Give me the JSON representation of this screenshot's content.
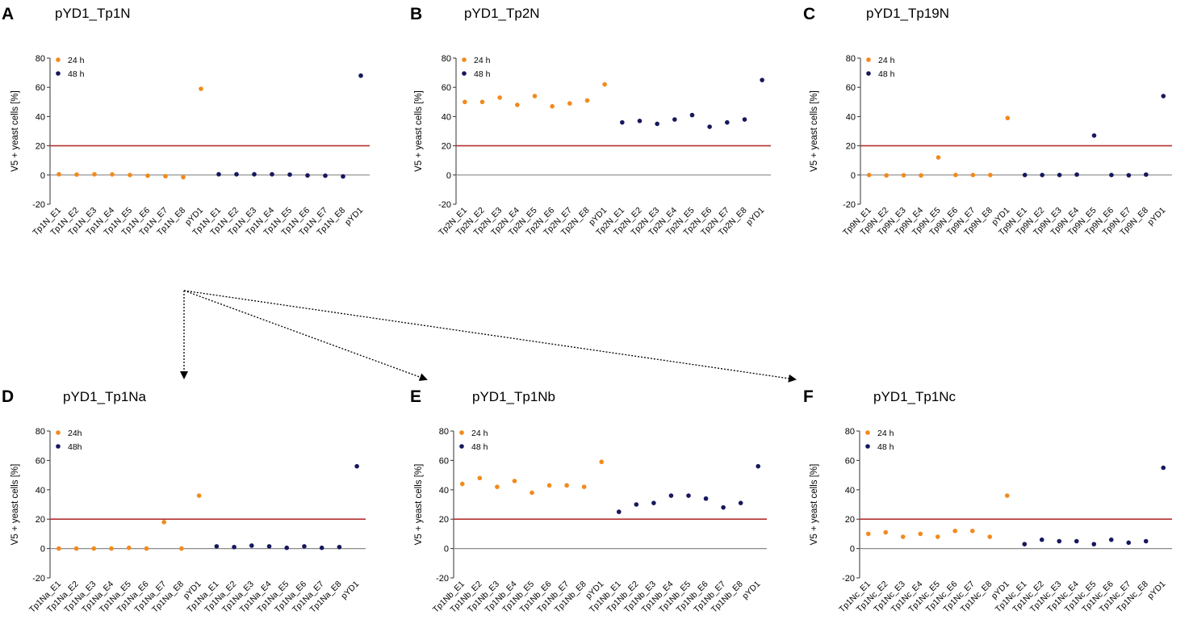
{
  "figure": {
    "colors": {
      "h24": "#f28a1c",
      "h48": "#17185e",
      "threshold": "#b53230",
      "zero": "#8a8a8a",
      "axis": "#333333"
    }
  },
  "chart_data": [
    {
      "type": "scatter",
      "panel": "A",
      "title": "pYD1_Tp1N",
      "xlabel": "",
      "ylabel": "V5 + yeast cells [%]",
      "ylim": [
        -20,
        80
      ],
      "yticks": [
        -20,
        0,
        20,
        40,
        60,
        80
      ],
      "legend": [
        "24 h",
        "48 h"
      ],
      "legend_position": "top-left",
      "threshold": 20,
      "categories": [
        "Tp1N_E1",
        "Tp1N_E2",
        "Tp1N_E3",
        "Tp1N_E4",
        "Tp1N_E5",
        "Tp1N_E6",
        "Tp1N_E7",
        "Tp1N_E8",
        "pYD1",
        "Tp1N_E1",
        "Tp1N_E2",
        "Tp1N_E3",
        "Tp1N_E4",
        "Tp1N_E5",
        "Tp1N_E6",
        "Tp1N_E7",
        "Tp1N_E8",
        "pYD1"
      ],
      "series": [
        {
          "name": "24 h",
          "x": [
            0,
            1,
            2,
            3,
            4,
            5,
            6,
            7,
            8
          ],
          "values": [
            0.5,
            0.3,
            0.5,
            0.4,
            0,
            -0.5,
            -0.8,
            -1.5,
            59
          ]
        },
        {
          "name": "48 h",
          "x": [
            9,
            10,
            11,
            12,
            13,
            14,
            15,
            16,
            17
          ],
          "values": [
            0.5,
            0.5,
            0.5,
            0.5,
            0.3,
            -0.3,
            -0.5,
            -1,
            68
          ]
        }
      ]
    },
    {
      "type": "scatter",
      "panel": "B",
      "title": "pYD1_Tp2N",
      "xlabel": "",
      "ylabel": "V5 + yeast cells [%]",
      "ylim": [
        -20,
        80
      ],
      "yticks": [
        -20,
        0,
        20,
        40,
        60,
        80
      ],
      "legend": [
        "24 h",
        "48 h"
      ],
      "legend_position": "top-left",
      "threshold": 20,
      "categories": [
        "Tp2N_E1",
        "Tp2N_E2",
        "Tp2N_E3",
        "Tp2N_E4",
        "Tp2N_E5",
        "Tp2N_E6",
        "Tp2N_E7",
        "Tp2N_E8",
        "pYD1",
        "Tp2N_E1",
        "Tp2N_E2",
        "Tp2N_E3",
        "Tp2N_E4",
        "Tp2N_E5",
        "Tp2N_E6",
        "Tp2N_E7",
        "Tp2N_E8",
        "pYD1"
      ],
      "series": [
        {
          "name": "24 h",
          "x": [
            0,
            1,
            2,
            3,
            4,
            5,
            6,
            7,
            8
          ],
          "values": [
            50,
            50,
            53,
            48,
            54,
            47,
            49,
            51,
            62
          ]
        },
        {
          "name": "48 h",
          "x": [
            9,
            10,
            11,
            12,
            13,
            14,
            15,
            16,
            17
          ],
          "values": [
            36,
            37,
            35,
            38,
            41,
            33,
            36,
            38,
            65
          ]
        }
      ]
    },
    {
      "type": "scatter",
      "panel": "C",
      "title": "pYD1_Tp19N",
      "xlabel": "",
      "ylabel": "V5 + yeast cells [%]",
      "ylim": [
        -20,
        80
      ],
      "yticks": [
        -20,
        0,
        20,
        40,
        60,
        80
      ],
      "legend": [
        "24 h",
        "48 h"
      ],
      "legend_position": "top-left",
      "threshold": 20,
      "categories": [
        "Tp9N_E1",
        "Tp9N_E2",
        "Tp9N_E3",
        "Tp9N_E4",
        "Tp9N_E5",
        "Tp9N_E6",
        "Tp9N_E7",
        "Tp9N_E8",
        "pYD1",
        "Tp9N_E1",
        "Tp9N_E2",
        "Tp9N_E3",
        "Tp9N_E4",
        "Tp9N_E5",
        "Tp9N_E6",
        "Tp9N_E7",
        "Tp9N_E8",
        "pYD1"
      ],
      "series": [
        {
          "name": "24 h",
          "x": [
            0,
            1,
            2,
            3,
            4,
            5,
            6,
            7,
            8
          ],
          "values": [
            0,
            -0.3,
            -0.2,
            -0.3,
            12,
            0,
            0,
            0,
            39
          ]
        },
        {
          "name": "48 h",
          "x": [
            9,
            10,
            11,
            12,
            13,
            14,
            15,
            16,
            17
          ],
          "values": [
            0,
            0,
            0,
            0.3,
            27,
            0,
            -0.2,
            0.3,
            54
          ]
        }
      ]
    },
    {
      "type": "scatter",
      "panel": "D",
      "title": "pYD1_Tp1Na",
      "xlabel": "",
      "ylabel": "V5 + yeast cells [%]",
      "ylim": [
        -20,
        80
      ],
      "yticks": [
        -20,
        0,
        20,
        40,
        60,
        80
      ],
      "legend": [
        "24h",
        "48h"
      ],
      "legend_position": "top-left",
      "threshold": 20,
      "categories": [
        "Tp1Na_E1",
        "Tp1Na_E2",
        "Tp1Na_E3",
        "Tp1Na_E4",
        "Tp1Na_E5",
        "Tp1Na_E6",
        "Tp1Na_E7",
        "Tp1Na_E8",
        "pYD1",
        "Tp1Na_E1",
        "Tp1Na_E2",
        "Tp1Na_E3",
        "Tp1Na_E4",
        "Tp1Na_E5",
        "Tp1Na_E6",
        "Tp1Na_E7",
        "Tp1Na_E8",
        "pYD1"
      ],
      "series": [
        {
          "name": "24h",
          "x": [
            0,
            1,
            2,
            3,
            4,
            5,
            6,
            7,
            8
          ],
          "values": [
            0,
            0,
            0,
            0,
            0.5,
            0,
            18,
            0,
            36
          ]
        },
        {
          "name": "48h",
          "x": [
            9,
            10,
            11,
            12,
            13,
            14,
            15,
            16,
            17
          ],
          "values": [
            1.5,
            1,
            2,
            1.5,
            0.5,
            1.5,
            0.5,
            1,
            56
          ]
        }
      ]
    },
    {
      "type": "scatter",
      "panel": "E",
      "title": "pYD1_Tp1Nb",
      "xlabel": "",
      "ylabel": "V5 + yeast cells [%]",
      "ylim": [
        -20,
        80
      ],
      "yticks": [
        -20,
        0,
        20,
        40,
        60,
        80
      ],
      "legend": [
        "24 h",
        "48 h"
      ],
      "legend_position": "top-left",
      "threshold": 20,
      "categories": [
        "Tp1Nb_E1",
        "Tp1Nb_E2",
        "Tp1Nb_E3",
        "Tp1Nb_E4",
        "Tp1Nb_E5",
        "Tp1Nb_E6",
        "Tp1Nb_E7",
        "Tp1Nb_E8",
        "pYD1",
        "Tp1Nb_E1",
        "Tp1Nb_E2",
        "Tp1Nb_E3",
        "Tp1Nb_E4",
        "Tp1Nb_E5",
        "Tp1Nb_E6",
        "Tp1Nb_E7",
        "Tp1Nb_E8",
        "pYD1"
      ],
      "series": [
        {
          "name": "24 h",
          "x": [
            0,
            1,
            2,
            3,
            4,
            5,
            6,
            7,
            8
          ],
          "values": [
            44,
            48,
            42,
            46,
            38,
            43,
            43,
            42,
            59
          ]
        },
        {
          "name": "48 h",
          "x": [
            9,
            10,
            11,
            12,
            13,
            14,
            15,
            16,
            17
          ],
          "values": [
            25,
            30,
            31,
            36,
            36,
            34,
            28,
            31,
            56
          ]
        }
      ]
    },
    {
      "type": "scatter",
      "panel": "F",
      "title": "pYD1_Tp1Nc",
      "xlabel": "",
      "ylabel": "V5 + yeast cells [%]",
      "ylim": [
        -20,
        80
      ],
      "yticks": [
        -20,
        0,
        20,
        40,
        60,
        80
      ],
      "legend": [
        "24 h",
        "48 h"
      ],
      "legend_position": "top-left",
      "threshold": 20,
      "categories": [
        "Tp1Nc_E1",
        "Tp1Nc_E2",
        "Tp1Nc_E3",
        "Tp1Nc_E4",
        "Tp1Nc_E5",
        "Tp1Nc_E6",
        "Tp1Nc_E7",
        "Tp1Nc_E8",
        "pYD1",
        "Tp1Nc_E1",
        "Tp1Nc_E2",
        "Tp1Nc_E3",
        "Tp1Nc_E4",
        "Tp1Nc_E5",
        "Tp1Nc_E6",
        "Tp1Nc_E7",
        "Tp1Nc_E8",
        "pYD1"
      ],
      "series": [
        {
          "name": "24 h",
          "x": [
            0,
            1,
            2,
            3,
            4,
            5,
            6,
            7,
            8
          ],
          "values": [
            10,
            11,
            8,
            10,
            8,
            12,
            12,
            8,
            36
          ]
        },
        {
          "name": "48 h",
          "x": [
            9,
            10,
            11,
            12,
            13,
            14,
            15,
            16,
            17
          ],
          "values": [
            3,
            6,
            5,
            5,
            3,
            6,
            4,
            5,
            55
          ]
        }
      ]
    }
  ]
}
